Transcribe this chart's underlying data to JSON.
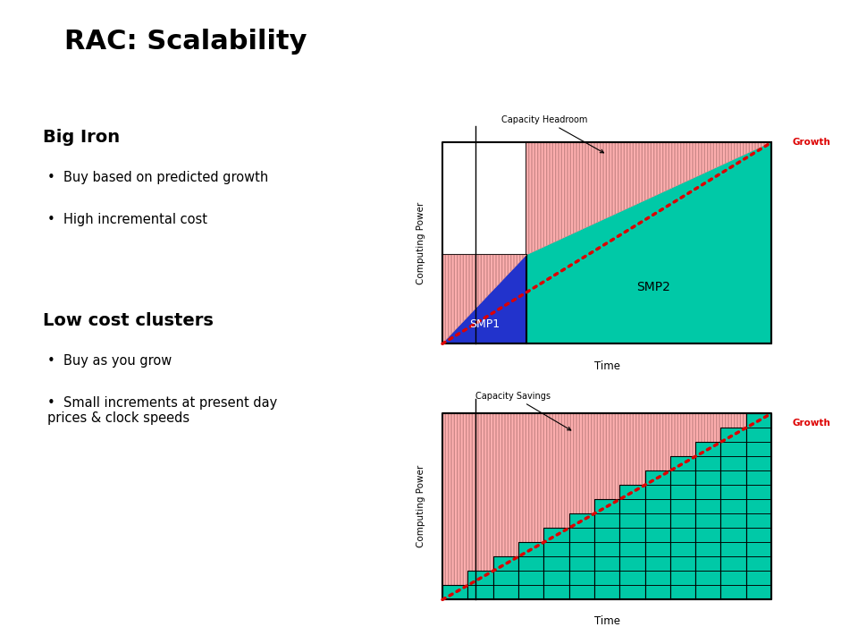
{
  "title": "RAC: Scalability",
  "bg_color": "#ffffff",
  "header_bar_color": "#cc0000",
  "oracle_bar_color": "#cc0000",
  "teal_color": "#00c9a7",
  "blue_color": "#2233cc",
  "pink_color": "#ffb0b0",
  "pink_hatch_color": "#cc8888",
  "red_dot_color": "#dd0000",
  "big_iron_title": "Big Iron",
  "big_iron_bullets": [
    "Buy based on predicted growth",
    "High incremental cost"
  ],
  "low_cost_title": "Low cost clusters",
  "low_cost_bullets": [
    "Buy as you grow",
    "Small increments at present day\nprices & clock speeds"
  ],
  "chart1_label_capacity": "Capacity Headroom",
  "chart1_label_smp1": "SMP1",
  "chart1_label_smp2": "SMP2",
  "chart1_xlabel": "Time",
  "chart1_ylabel": "Computing Power",
  "chart1_growth": "Growth",
  "chart2_label_capacity": "Capacity Savings",
  "chart2_xlabel": "Time",
  "chart2_ylabel": "Computing Power",
  "chart2_growth": "Growth",
  "n_steps": 13
}
